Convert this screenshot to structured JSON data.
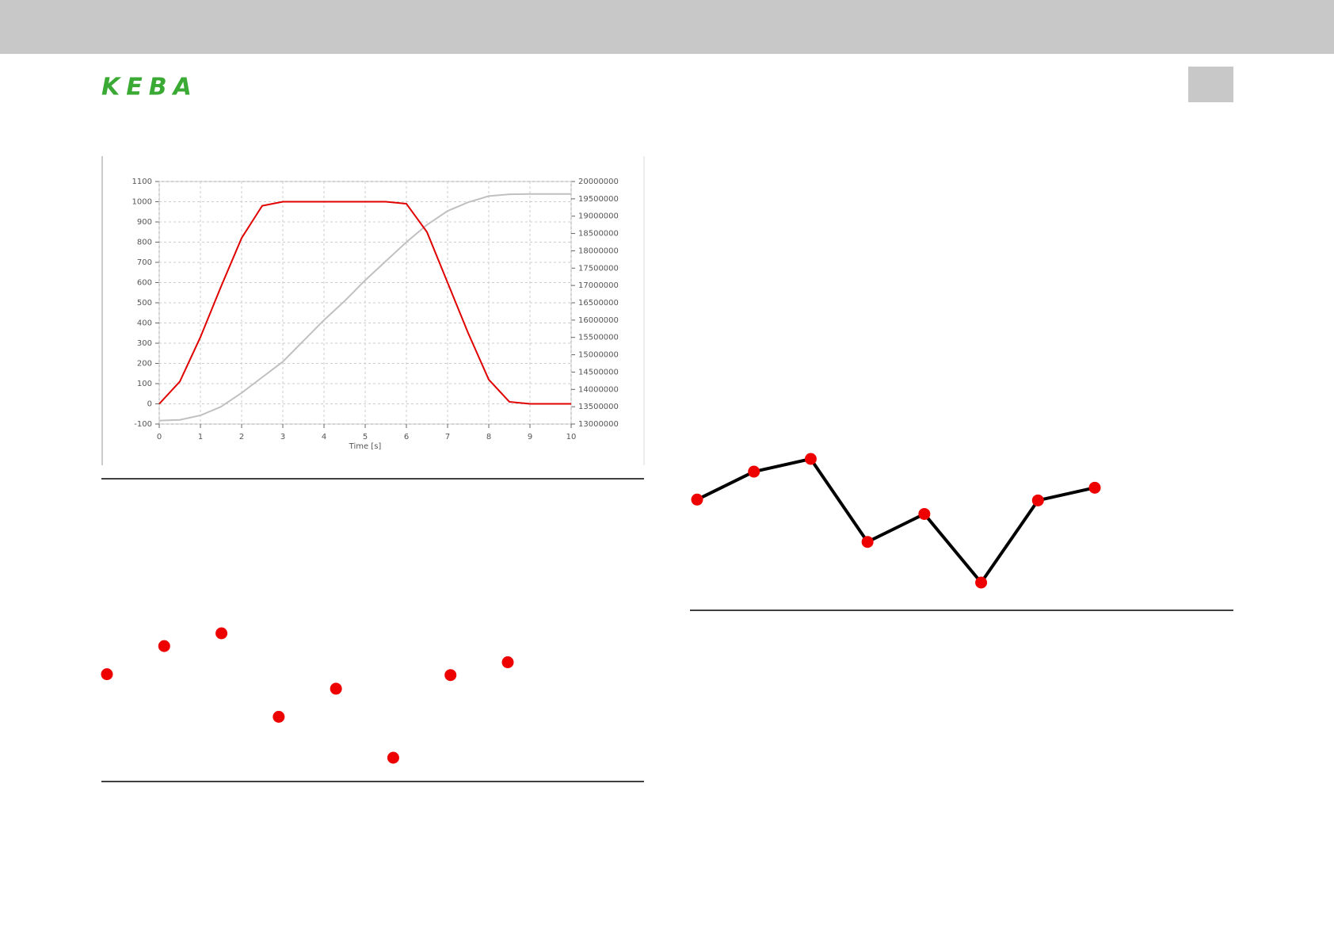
{
  "header": {
    "logo": "KEBA"
  },
  "chart_data": [
    {
      "type": "line",
      "xlabel": "Time [s]",
      "x": [
        0,
        0.5,
        1,
        1.5,
        2,
        2.5,
        3,
        3.5,
        4,
        4.5,
        5,
        5.5,
        6,
        6.5,
        7,
        7.5,
        8,
        8.5,
        9,
        9.5,
        10
      ],
      "series": [
        {
          "color": "#e00000",
          "values": [
            0,
            110,
            330,
            580,
            820,
            980,
            1000,
            1000,
            1000,
            1000,
            1000,
            1000,
            990,
            850,
            600,
            350,
            120,
            10,
            0,
            0,
            0
          ]
        },
        {
          "color": "#c0c0c0",
          "axis": "y2",
          "values": [
            13100000,
            13120000,
            13250000,
            13500000,
            13900000,
            14350000,
            14800000,
            15400000,
            16000000,
            16550000,
            17150000,
            17700000,
            18250000,
            18750000,
            19150000,
            19400000,
            19580000,
            19630000,
            19640000,
            19640000,
            19640000
          ]
        }
      ],
      "xlim": [
        0,
        10
      ],
      "xticks": [
        0,
        1,
        2,
        3,
        4,
        5,
        6,
        7,
        8,
        9,
        10
      ],
      "ylim": [
        -100,
        1100
      ],
      "yticks": [
        -100,
        0,
        100,
        200,
        300,
        400,
        500,
        600,
        700,
        800,
        900,
        1000,
        1100
      ],
      "y2lim": [
        13000000,
        20000000
      ],
      "y2ticks": [
        13000000,
        13500000,
        14000000,
        14500000,
        15000000,
        15500000,
        16000000,
        16500000,
        17000000,
        17500000,
        18000000,
        18500000,
        19000000,
        19500000,
        20000000
      ],
      "grid": true
    },
    {
      "type": "scatter",
      "color": "#ee0000",
      "x": [
        0,
        1,
        2,
        3,
        4,
        5,
        6,
        7
      ],
      "values": [
        10.8,
        14.1,
        15.6,
        5.8,
        9.1,
        1.0,
        10.7,
        12.2
      ]
    },
    {
      "type": "line",
      "color": "#000000",
      "marker_color": "#ee0000",
      "x": [
        0,
        1,
        2,
        3,
        4,
        5,
        6,
        7
      ],
      "values": [
        10.8,
        14.1,
        15.6,
        5.8,
        9.1,
        1.0,
        10.7,
        12.2
      ]
    }
  ]
}
